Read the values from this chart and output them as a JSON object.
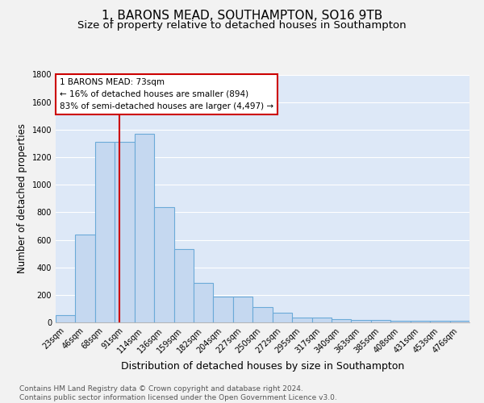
{
  "title": "1, BARONS MEAD, SOUTHAMPTON, SO16 9TB",
  "subtitle": "Size of property relative to detached houses in Southampton",
  "xlabel": "Distribution of detached houses by size in Southampton",
  "ylabel": "Number of detached properties",
  "categories": [
    "23sqm",
    "46sqm",
    "68sqm",
    "91sqm",
    "114sqm",
    "136sqm",
    "159sqm",
    "182sqm",
    "204sqm",
    "227sqm",
    "250sqm",
    "272sqm",
    "295sqm",
    "317sqm",
    "340sqm",
    "363sqm",
    "385sqm",
    "408sqm",
    "431sqm",
    "453sqm",
    "476sqm"
  ],
  "values": [
    55,
    640,
    1310,
    1310,
    1370,
    840,
    530,
    285,
    185,
    185,
    110,
    70,
    38,
    38,
    25,
    20,
    18,
    10,
    10,
    10,
    10
  ],
  "bar_color": "#c5d8f0",
  "bar_edgecolor": "#6baad8",
  "bar_linewidth": 0.8,
  "grid_color": "#ffffff",
  "bg_color": "#dde8f7",
  "fig_color": "#f2f2f2",
  "vline_x": 2.72,
  "vline_color": "#cc0000",
  "vline_linewidth": 1.5,
  "annotation_text": "1 BARONS MEAD: 73sqm\n← 16% of detached houses are smaller (894)\n83% of semi-detached houses are larger (4,497) →",
  "annotation_box_edgecolor": "#cc0000",
  "annotation_box_facecolor": "#ffffff",
  "ylim": [
    0,
    1800
  ],
  "yticks": [
    0,
    200,
    400,
    600,
    800,
    1000,
    1200,
    1400,
    1600,
    1800
  ],
  "footer_text": "Contains HM Land Registry data © Crown copyright and database right 2024.\nContains public sector information licensed under the Open Government Licence v3.0.",
  "title_fontsize": 11,
  "subtitle_fontsize": 9.5,
  "ylabel_fontsize": 8.5,
  "xlabel_fontsize": 9,
  "tick_fontsize": 7,
  "footer_fontsize": 6.5,
  "ann_fontsize": 7.5
}
